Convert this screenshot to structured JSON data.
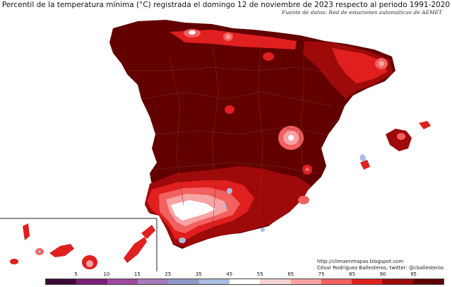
{
  "title": "Percentil de la temperatura mínima (°C) registrada el domingo 12 de noviembre de 2023 respecto al periodo 1991-2020",
  "source": "Fuente de datos: Red de estaciones automáticas de AEMET",
  "credits": {
    "url": "http://climaenmapas.blogspot.com",
    "author": "César Rodríguez Ballesteros, twitter: @cballesteros"
  },
  "legend": {
    "labels": [
      "5",
      "10",
      "15",
      "25",
      "35",
      "45",
      "55",
      "65",
      "75",
      "85",
      "90",
      "95"
    ],
    "colors": [
      "#3d0a3a",
      "#7a1f74",
      "#9b4a9e",
      "#a77ab8",
      "#8e98c9",
      "#a9bde0",
      "#ffffff",
      "#f7d2d2",
      "#f7a3a3",
      "#f2605f",
      "#e01f1f",
      "#9e0a0a",
      "#5e0000"
    ]
  },
  "map_colors": {
    "p95": "#620000",
    "p90": "#9e0a0a",
    "p85": "#e01f1f",
    "p75": "#f2605f",
    "p65": "#f7a3a3",
    "p55": "#ffffff",
    "p45": "#a9bde0",
    "p35": "#8e98c9",
    "border": "#3a0000",
    "province_lines": "#7a3030"
  }
}
